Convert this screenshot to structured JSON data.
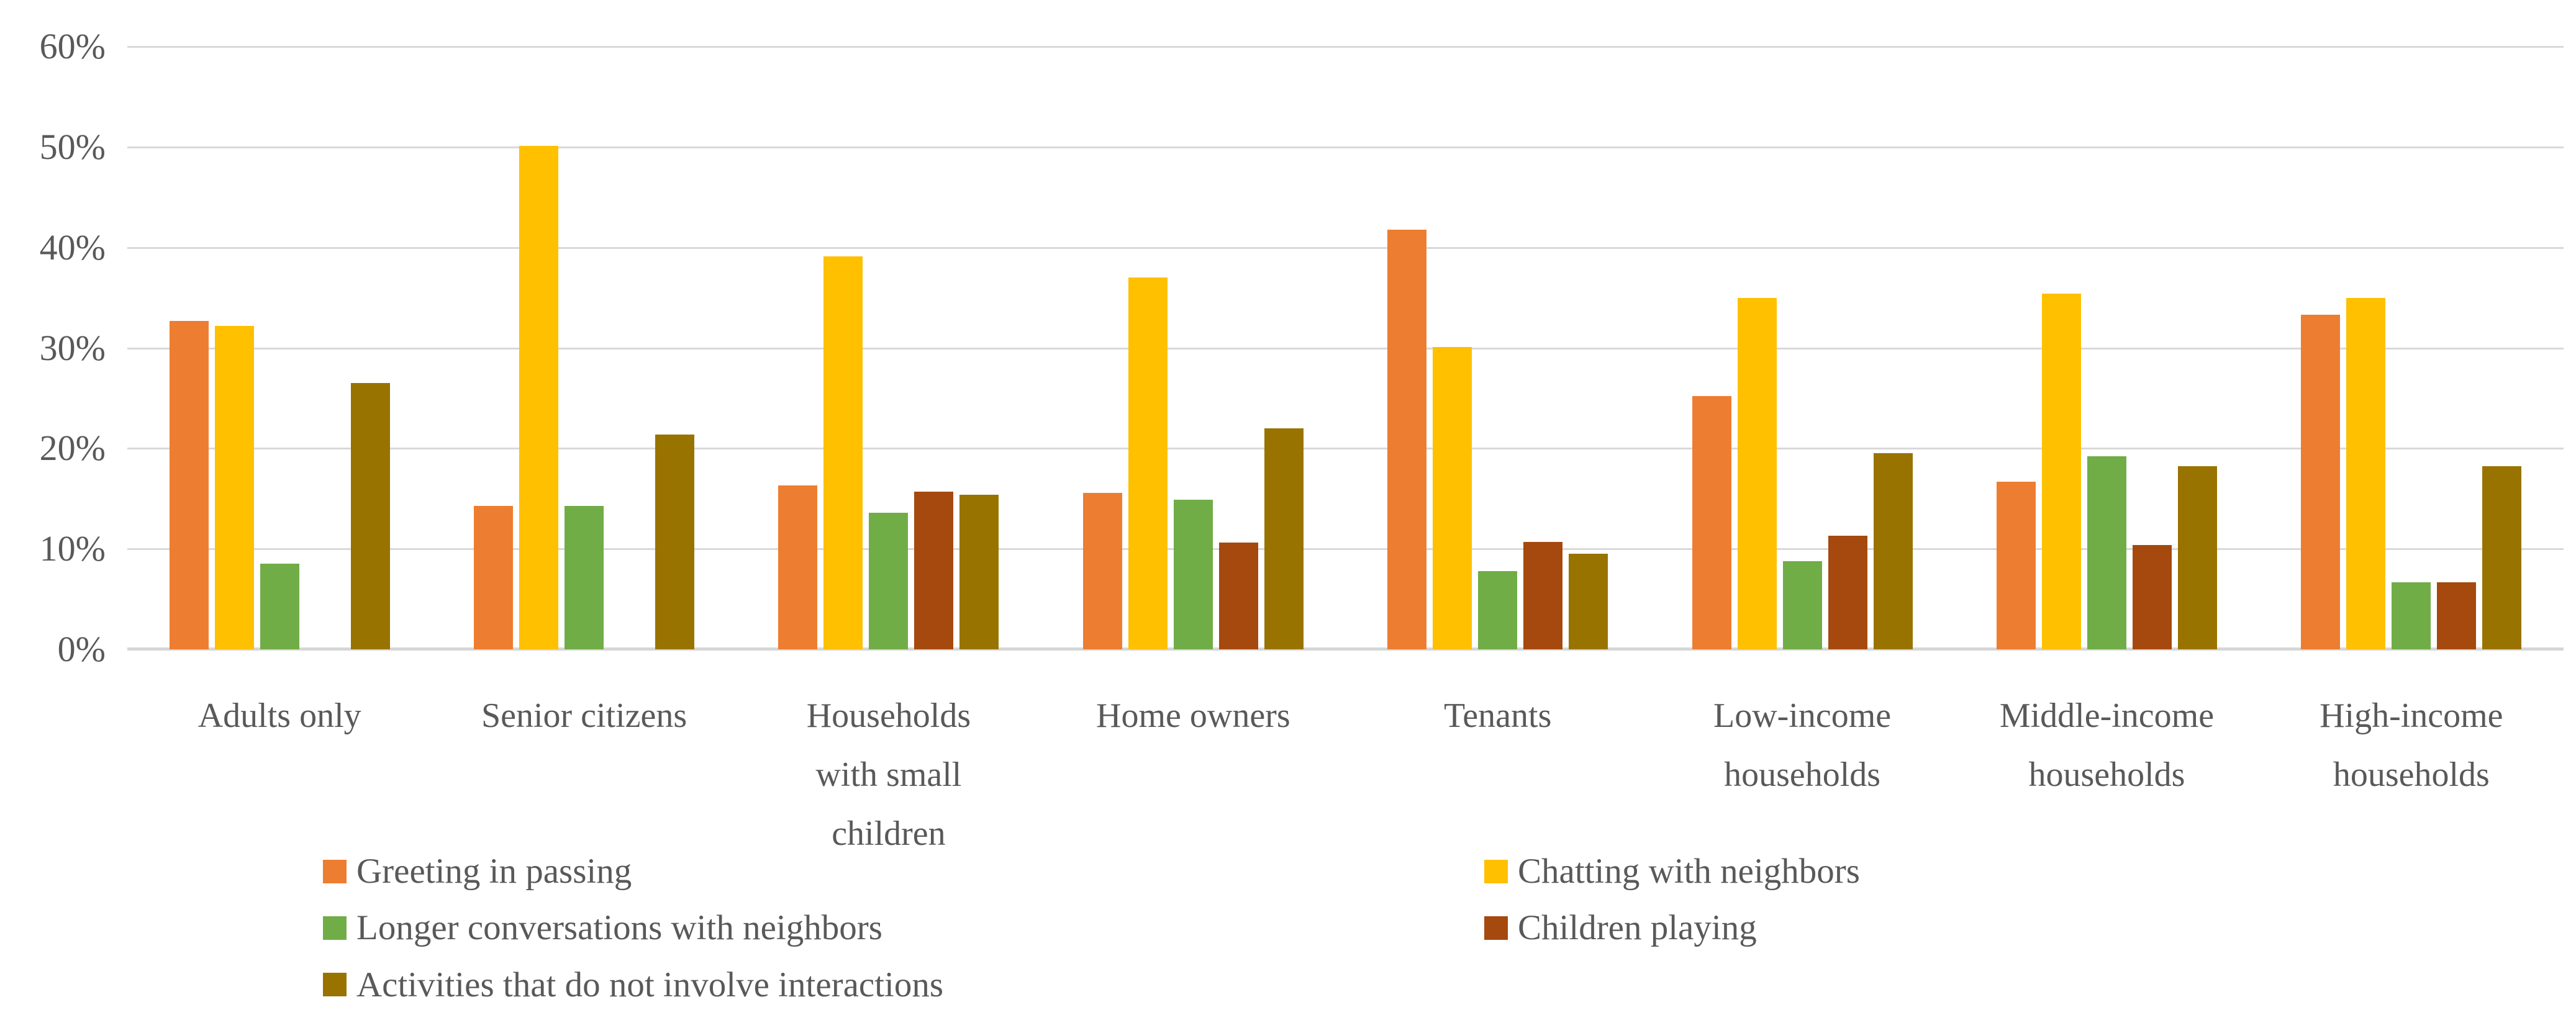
{
  "colors": {
    "orange": "#ED7D31",
    "yellow": "#FFC000",
    "green": "#70AD47",
    "brown": "#A5490E",
    "olive": "#997300",
    "gridline": "#D9D9D9",
    "text": "#595959"
  },
  "chart_data": {
    "type": "bar",
    "title": "",
    "xlabel": "",
    "ylabel": "",
    "ylim": [
      0,
      60
    ],
    "grid": true,
    "legend_position": "bottom",
    "yticks": [
      "0%",
      "10%",
      "20%",
      "30%",
      "40%",
      "50%",
      "60%"
    ],
    "categories": [
      "Adults only",
      "Senior citizens",
      "Households\nwith small\nchildren",
      "Home owners",
      "Tenants",
      "Low-income\nhouseholds",
      "Middle-income\nhouseholds",
      "High-income\nhouseholds"
    ],
    "series": [
      {
        "name": "Greeting in passing",
        "color_key": "orange",
        "values": [
          32.7,
          14.3,
          16.3,
          15.6,
          41.8,
          25.2,
          16.7,
          33.3
        ]
      },
      {
        "name": "Chatting with neighbors",
        "color_key": "yellow",
        "values": [
          32.2,
          50.1,
          39.1,
          37.0,
          30.1,
          35.0,
          35.4,
          35.0
        ]
      },
      {
        "name": "Longer conversations with neighbors",
        "color_key": "green",
        "values": [
          8.5,
          14.3,
          13.6,
          14.9,
          7.8,
          8.8,
          19.2,
          6.7
        ]
      },
      {
        "name": "Children playing",
        "color_key": "brown",
        "values": [
          0,
          0,
          15.7,
          10.6,
          10.7,
          11.3,
          10.4,
          6.7
        ]
      },
      {
        "name": "Activities that do not involve interactions",
        "color_key": "olive",
        "values": [
          26.5,
          21.4,
          15.4,
          22.0,
          9.5,
          19.5,
          18.2,
          18.2
        ]
      }
    ]
  },
  "legend": {
    "items": [
      {
        "label": "Greeting in passing",
        "color_key": "orange"
      },
      {
        "label": "Chatting with neighbors",
        "color_key": "yellow"
      },
      {
        "label": "Longer conversations with neighbors",
        "color_key": "green"
      },
      {
        "label": "Children playing",
        "color_key": "brown"
      },
      {
        "label": "Activities that do not involve interactions",
        "color_key": "olive"
      }
    ]
  }
}
